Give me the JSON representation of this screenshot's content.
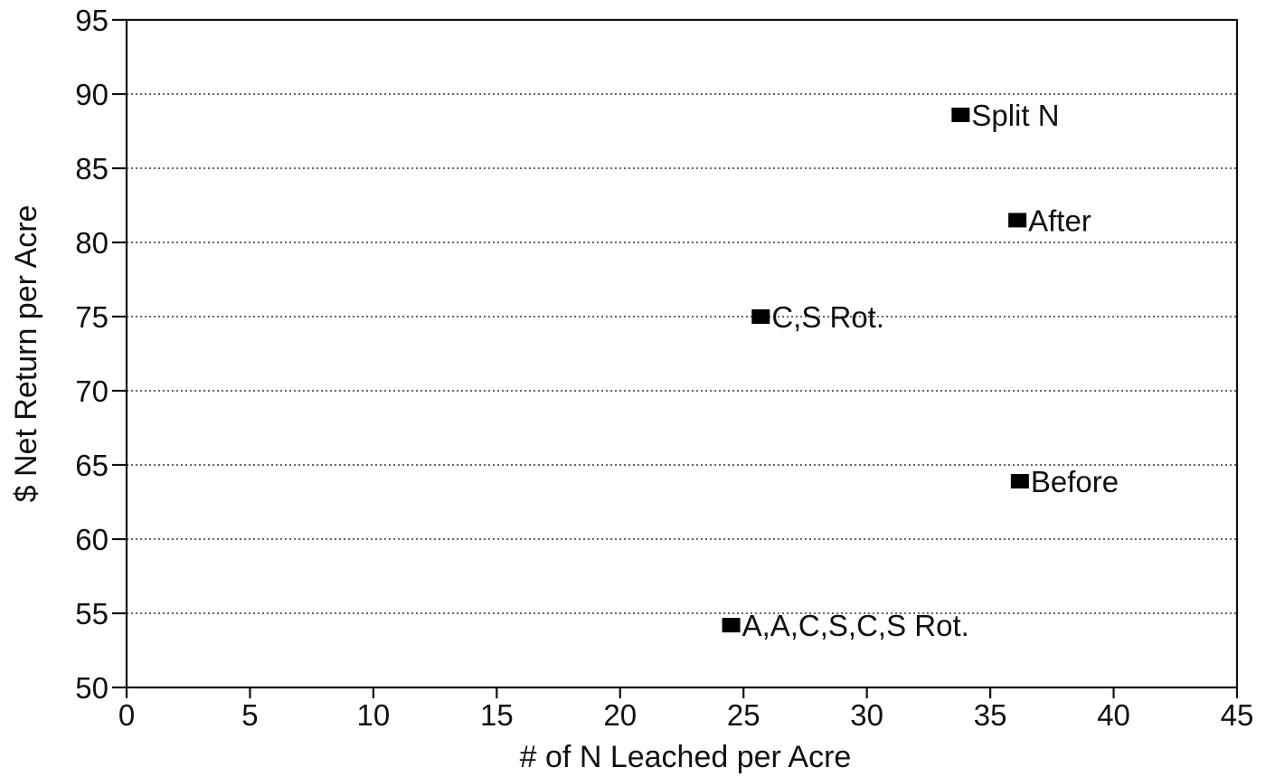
{
  "chart_data": {
    "type": "scatter",
    "xlabel": "# of N Leached per Acre",
    "ylabel": "$ Net Return per Acre",
    "xlim": [
      0,
      45
    ],
    "ylim": [
      50,
      95
    ],
    "xticks": [
      0,
      5,
      10,
      15,
      20,
      25,
      30,
      35,
      40,
      45
    ],
    "yticks": [
      50,
      55,
      60,
      65,
      70,
      75,
      80,
      85,
      90,
      95
    ],
    "grid": "horizontal-dotted",
    "marker_color": "#000000",
    "points": [
      {
        "label": "Split N",
        "x": 33.8,
        "y": 88.6
      },
      {
        "label": "After",
        "x": 36.1,
        "y": 81.5
      },
      {
        "label": "C,S Rot.",
        "x": 25.7,
        "y": 75.0
      },
      {
        "label": "Before",
        "x": 36.2,
        "y": 63.9
      },
      {
        "label": "A,A,C,S,C,S Rot.",
        "x": 24.5,
        "y": 54.2
      }
    ]
  }
}
